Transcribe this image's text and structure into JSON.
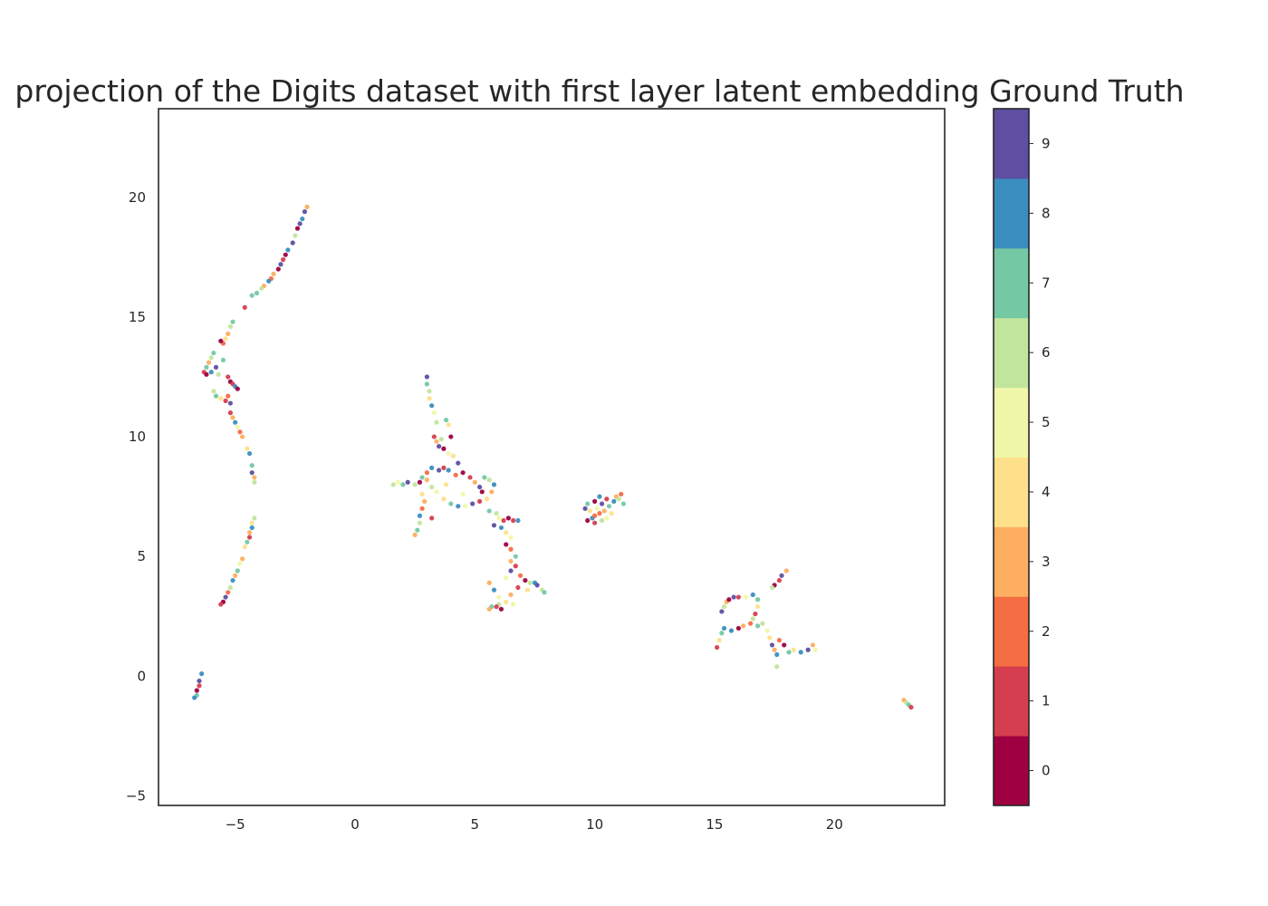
{
  "chart_data": {
    "type": "scatter",
    "title": "projection of the Digits dataset with first layer latent embedding Ground Truth",
    "xlabel": "",
    "ylabel": "",
    "xlim": [
      -8.2,
      24.6
    ],
    "ylim": [
      -5.4,
      23.7
    ],
    "xticks": [
      -5,
      0,
      5,
      10,
      15,
      20
    ],
    "xtick_labels": [
      "−5",
      "0",
      "5",
      "10",
      "15",
      "20"
    ],
    "yticks": [
      -5,
      0,
      5,
      10,
      15,
      20
    ],
    "ytick_labels": [
      "−5",
      "0",
      "5",
      "10",
      "15",
      "20"
    ],
    "grid": false,
    "colormap": "Spectral",
    "colorbar": {
      "ticks": [
        0,
        1,
        2,
        3,
        4,
        5,
        6,
        7,
        8,
        9
      ],
      "tick_labels": [
        "0",
        "1",
        "2",
        "3",
        "4",
        "5",
        "6",
        "7",
        "8",
        "9"
      ],
      "colors": [
        "#9e0142",
        "#d53e4f",
        "#f46d43",
        "#fdae61",
        "#fee08b",
        "#f1f7a8",
        "#c2e59e",
        "#75c8a4",
        "#3a8ebf",
        "#5e4fa2"
      ]
    },
    "points": [
      {
        "x": -2.0,
        "y": 19.6,
        "c": 3
      },
      {
        "x": -2.1,
        "y": 19.4,
        "c": 9
      },
      {
        "x": -2.2,
        "y": 19.1,
        "c": 8
      },
      {
        "x": -2.3,
        "y": 18.9,
        "c": 9
      },
      {
        "x": -2.4,
        "y": 18.7,
        "c": 0
      },
      {
        "x": -2.5,
        "y": 18.4,
        "c": 6
      },
      {
        "x": -2.6,
        "y": 18.1,
        "c": 9
      },
      {
        "x": -2.8,
        "y": 17.8,
        "c": 8
      },
      {
        "x": -2.9,
        "y": 17.6,
        "c": 0
      },
      {
        "x": -3.0,
        "y": 17.4,
        "c": 1
      },
      {
        "x": -3.1,
        "y": 17.2,
        "c": 9
      },
      {
        "x": -3.2,
        "y": 17.0,
        "c": 0
      },
      {
        "x": -3.4,
        "y": 16.8,
        "c": 3
      },
      {
        "x": -3.5,
        "y": 16.6,
        "c": 2
      },
      {
        "x": -3.6,
        "y": 16.5,
        "c": 8
      },
      {
        "x": -3.8,
        "y": 16.3,
        "c": 3
      },
      {
        "x": -3.9,
        "y": 16.2,
        "c": 6
      },
      {
        "x": -4.1,
        "y": 16.0,
        "c": 7
      },
      {
        "x": -4.3,
        "y": 15.9,
        "c": 7
      },
      {
        "x": -4.6,
        "y": 15.4,
        "c": 1
      },
      {
        "x": -5.1,
        "y": 14.8,
        "c": 7
      },
      {
        "x": -5.2,
        "y": 14.6,
        "c": 6
      },
      {
        "x": -5.3,
        "y": 14.3,
        "c": 3
      },
      {
        "x": -5.4,
        "y": 14.1,
        "c": 4
      },
      {
        "x": -5.5,
        "y": 13.9,
        "c": 2
      },
      {
        "x": -5.6,
        "y": 14.0,
        "c": 0
      },
      {
        "x": -5.9,
        "y": 13.5,
        "c": 7
      },
      {
        "x": -6.0,
        "y": 13.3,
        "c": 6
      },
      {
        "x": -6.1,
        "y": 13.1,
        "c": 3
      },
      {
        "x": -6.2,
        "y": 12.9,
        "c": 7
      },
      {
        "x": -6.3,
        "y": 12.7,
        "c": 1
      },
      {
        "x": -6.2,
        "y": 12.6,
        "c": 0
      },
      {
        "x": -6.0,
        "y": 12.7,
        "c": 8
      },
      {
        "x": -5.8,
        "y": 12.9,
        "c": 9
      },
      {
        "x": -5.7,
        "y": 12.6,
        "c": 6
      },
      {
        "x": -5.5,
        "y": 13.2,
        "c": 7
      },
      {
        "x": -5.3,
        "y": 12.5,
        "c": 1
      },
      {
        "x": -5.2,
        "y": 12.3,
        "c": 0
      },
      {
        "x": -5.1,
        "y": 12.2,
        "c": 1
      },
      {
        "x": -5.0,
        "y": 12.1,
        "c": 8
      },
      {
        "x": -4.9,
        "y": 12.0,
        "c": 0
      },
      {
        "x": -5.9,
        "y": 11.9,
        "c": 6
      },
      {
        "x": -5.8,
        "y": 11.7,
        "c": 7
      },
      {
        "x": -5.6,
        "y": 11.6,
        "c": 4
      },
      {
        "x": -5.4,
        "y": 11.5,
        "c": 1
      },
      {
        "x": -5.3,
        "y": 11.7,
        "c": 2
      },
      {
        "x": -5.2,
        "y": 11.4,
        "c": 9
      },
      {
        "x": -5.2,
        "y": 11.0,
        "c": 1
      },
      {
        "x": -5.1,
        "y": 10.8,
        "c": 3
      },
      {
        "x": -5.0,
        "y": 10.6,
        "c": 8
      },
      {
        "x": -4.9,
        "y": 10.4,
        "c": 5
      },
      {
        "x": -4.8,
        "y": 10.2,
        "c": 2
      },
      {
        "x": -4.7,
        "y": 10.0,
        "c": 3
      },
      {
        "x": -4.5,
        "y": 9.5,
        "c": 4
      },
      {
        "x": -4.4,
        "y": 9.3,
        "c": 8
      },
      {
        "x": -4.3,
        "y": 8.8,
        "c": 7
      },
      {
        "x": -4.3,
        "y": 8.5,
        "c": 9
      },
      {
        "x": -4.2,
        "y": 8.3,
        "c": 3
      },
      {
        "x": -4.2,
        "y": 8.1,
        "c": 6
      },
      {
        "x": -4.2,
        "y": 6.6,
        "c": 6
      },
      {
        "x": -4.3,
        "y": 6.4,
        "c": 4
      },
      {
        "x": -4.3,
        "y": 6.2,
        "c": 8
      },
      {
        "x": -4.4,
        "y": 6.0,
        "c": 3
      },
      {
        "x": -4.4,
        "y": 5.8,
        "c": 1
      },
      {
        "x": -4.5,
        "y": 5.6,
        "c": 7
      },
      {
        "x": -4.6,
        "y": 5.4,
        "c": 4
      },
      {
        "x": -4.7,
        "y": 4.9,
        "c": 3
      },
      {
        "x": -4.8,
        "y": 4.7,
        "c": 5
      },
      {
        "x": -4.9,
        "y": 4.4,
        "c": 7
      },
      {
        "x": -5.0,
        "y": 4.2,
        "c": 3
      },
      {
        "x": -5.1,
        "y": 4.0,
        "c": 8
      },
      {
        "x": -5.2,
        "y": 3.7,
        "c": 6
      },
      {
        "x": -5.3,
        "y": 3.5,
        "c": 2
      },
      {
        "x": -5.4,
        "y": 3.3,
        "c": 9
      },
      {
        "x": -5.5,
        "y": 3.1,
        "c": 0
      },
      {
        "x": -5.6,
        "y": 3.0,
        "c": 1
      },
      {
        "x": -6.4,
        "y": 0.1,
        "c": 8
      },
      {
        "x": -6.5,
        "y": -0.2,
        "c": 9
      },
      {
        "x": -6.5,
        "y": -0.4,
        "c": 1
      },
      {
        "x": -6.6,
        "y": -0.6,
        "c": 0
      },
      {
        "x": -6.6,
        "y": -0.8,
        "c": 7
      },
      {
        "x": -6.7,
        "y": -0.9,
        "c": 8
      },
      {
        "x": 3.0,
        "y": 12.5,
        "c": 9
      },
      {
        "x": 3.0,
        "y": 12.2,
        "c": 7
      },
      {
        "x": 3.1,
        "y": 11.9,
        "c": 6
      },
      {
        "x": 3.1,
        "y": 11.6,
        "c": 4
      },
      {
        "x": 3.2,
        "y": 11.3,
        "c": 8
      },
      {
        "x": 3.3,
        "y": 11.0,
        "c": 5
      },
      {
        "x": 3.4,
        "y": 10.6,
        "c": 6
      },
      {
        "x": 3.8,
        "y": 10.7,
        "c": 7
      },
      {
        "x": 3.9,
        "y": 10.5,
        "c": 4
      },
      {
        "x": 3.3,
        "y": 10.0,
        "c": 1
      },
      {
        "x": 3.4,
        "y": 9.8,
        "c": 3
      },
      {
        "x": 3.5,
        "y": 9.6,
        "c": 9
      },
      {
        "x": 3.7,
        "y": 9.5,
        "c": 0
      },
      {
        "x": 3.9,
        "y": 9.3,
        "c": 5
      },
      {
        "x": 4.1,
        "y": 9.2,
        "c": 4
      },
      {
        "x": 4.3,
        "y": 8.9,
        "c": 9
      },
      {
        "x": 4.0,
        "y": 10.0,
        "c": 0
      },
      {
        "x": 3.6,
        "y": 9.9,
        "c": 6
      },
      {
        "x": 3.2,
        "y": 8.7,
        "c": 8
      },
      {
        "x": 3.0,
        "y": 8.5,
        "c": 2
      },
      {
        "x": 2.8,
        "y": 8.3,
        "c": 7
      },
      {
        "x": 2.7,
        "y": 8.1,
        "c": 0
      },
      {
        "x": 2.5,
        "y": 8.0,
        "c": 6
      },
      {
        "x": 2.2,
        "y": 8.1,
        "c": 9
      },
      {
        "x": 2.0,
        "y": 8.0,
        "c": 7
      },
      {
        "x": 1.8,
        "y": 8.1,
        "c": 5
      },
      {
        "x": 1.6,
        "y": 8.0,
        "c": 6
      },
      {
        "x": 2.8,
        "y": 7.6,
        "c": 4
      },
      {
        "x": 2.9,
        "y": 7.3,
        "c": 3
      },
      {
        "x": 2.8,
        "y": 7.0,
        "c": 2
      },
      {
        "x": 2.7,
        "y": 6.7,
        "c": 8
      },
      {
        "x": 2.7,
        "y": 6.4,
        "c": 6
      },
      {
        "x": 2.6,
        "y": 6.1,
        "c": 7
      },
      {
        "x": 2.5,
        "y": 5.9,
        "c": 3
      },
      {
        "x": 3.2,
        "y": 6.6,
        "c": 1
      },
      {
        "x": 3.5,
        "y": 8.6,
        "c": 9
      },
      {
        "x": 3.7,
        "y": 8.7,
        "c": 1
      },
      {
        "x": 3.9,
        "y": 8.6,
        "c": 8
      },
      {
        "x": 4.2,
        "y": 8.4,
        "c": 2
      },
      {
        "x": 4.5,
        "y": 8.5,
        "c": 0
      },
      {
        "x": 4.8,
        "y": 8.3,
        "c": 1
      },
      {
        "x": 5.0,
        "y": 8.1,
        "c": 3
      },
      {
        "x": 5.2,
        "y": 7.9,
        "c": 9
      },
      {
        "x": 5.3,
        "y": 7.7,
        "c": 0
      },
      {
        "x": 5.4,
        "y": 8.3,
        "c": 7
      },
      {
        "x": 5.6,
        "y": 8.2,
        "c": 6
      },
      {
        "x": 5.8,
        "y": 8.0,
        "c": 8
      },
      {
        "x": 5.7,
        "y": 7.7,
        "c": 3
      },
      {
        "x": 5.5,
        "y": 7.4,
        "c": 4
      },
      {
        "x": 5.2,
        "y": 7.3,
        "c": 1
      },
      {
        "x": 4.9,
        "y": 7.2,
        "c": 9
      },
      {
        "x": 4.6,
        "y": 7.1,
        "c": 5
      },
      {
        "x": 4.3,
        "y": 7.1,
        "c": 8
      },
      {
        "x": 4.0,
        "y": 7.2,
        "c": 7
      },
      {
        "x": 3.7,
        "y": 7.4,
        "c": 4
      },
      {
        "x": 3.4,
        "y": 7.7,
        "c": 5
      },
      {
        "x": 3.2,
        "y": 7.9,
        "c": 6
      },
      {
        "x": 3.0,
        "y": 8.2,
        "c": 3
      },
      {
        "x": 3.8,
        "y": 8.0,
        "c": 4
      },
      {
        "x": 4.5,
        "y": 7.6,
        "c": 5
      },
      {
        "x": 5.6,
        "y": 6.9,
        "c": 7
      },
      {
        "x": 5.9,
        "y": 6.8,
        "c": 6
      },
      {
        "x": 6.0,
        "y": 6.6,
        "c": 5
      },
      {
        "x": 6.2,
        "y": 6.5,
        "c": 1
      },
      {
        "x": 6.4,
        "y": 6.6,
        "c": 0
      },
      {
        "x": 6.6,
        "y": 6.5,
        "c": 1
      },
      {
        "x": 6.8,
        "y": 6.5,
        "c": 8
      },
      {
        "x": 5.8,
        "y": 6.3,
        "c": 9
      },
      {
        "x": 6.1,
        "y": 6.2,
        "c": 8
      },
      {
        "x": 6.3,
        "y": 6.0,
        "c": 4
      },
      {
        "x": 6.5,
        "y": 5.8,
        "c": 5
      },
      {
        "x": 6.3,
        "y": 5.5,
        "c": 0
      },
      {
        "x": 6.5,
        "y": 5.3,
        "c": 2
      },
      {
        "x": 6.7,
        "y": 5.0,
        "c": 7
      },
      {
        "x": 6.5,
        "y": 4.8,
        "c": 3
      },
      {
        "x": 6.7,
        "y": 4.6,
        "c": 1
      },
      {
        "x": 6.5,
        "y": 4.4,
        "c": 9
      },
      {
        "x": 6.3,
        "y": 4.1,
        "c": 5
      },
      {
        "x": 6.9,
        "y": 4.2,
        "c": 2
      },
      {
        "x": 7.1,
        "y": 4.0,
        "c": 0
      },
      {
        "x": 7.3,
        "y": 3.9,
        "c": 6
      },
      {
        "x": 7.5,
        "y": 3.9,
        "c": 8
      },
      {
        "x": 7.6,
        "y": 3.8,
        "c": 9
      },
      {
        "x": 7.8,
        "y": 3.6,
        "c": 6
      },
      {
        "x": 7.9,
        "y": 3.5,
        "c": 7
      },
      {
        "x": 7.2,
        "y": 3.6,
        "c": 4
      },
      {
        "x": 6.8,
        "y": 3.7,
        "c": 1
      },
      {
        "x": 6.5,
        "y": 3.4,
        "c": 3
      },
      {
        "x": 6.3,
        "y": 3.1,
        "c": 4
      },
      {
        "x": 6.0,
        "y": 3.0,
        "c": 6
      },
      {
        "x": 5.7,
        "y": 2.9,
        "c": 7
      },
      {
        "x": 5.6,
        "y": 2.8,
        "c": 3
      },
      {
        "x": 5.9,
        "y": 2.9,
        "c": 1
      },
      {
        "x": 6.1,
        "y": 2.8,
        "c": 0
      },
      {
        "x": 5.6,
        "y": 3.9,
        "c": 3
      },
      {
        "x": 5.8,
        "y": 3.6,
        "c": 8
      },
      {
        "x": 6.0,
        "y": 3.3,
        "c": 5
      },
      {
        "x": 6.6,
        "y": 3.0,
        "c": 5
      },
      {
        "x": 9.6,
        "y": 7.0,
        "c": 9
      },
      {
        "x": 9.7,
        "y": 7.2,
        "c": 7
      },
      {
        "x": 9.8,
        "y": 6.9,
        "c": 4
      },
      {
        "x": 9.9,
        "y": 6.6,
        "c": 8
      },
      {
        "x": 10.0,
        "y": 6.4,
        "c": 1
      },
      {
        "x": 10.0,
        "y": 7.3,
        "c": 0
      },
      {
        "x": 10.1,
        "y": 7.0,
        "c": 5
      },
      {
        "x": 10.2,
        "y": 6.8,
        "c": 2
      },
      {
        "x": 10.2,
        "y": 7.5,
        "c": 8
      },
      {
        "x": 10.3,
        "y": 6.5,
        "c": 6
      },
      {
        "x": 10.3,
        "y": 7.2,
        "c": 9
      },
      {
        "x": 10.4,
        "y": 6.9,
        "c": 3
      },
      {
        "x": 10.5,
        "y": 6.6,
        "c": 5
      },
      {
        "x": 10.5,
        "y": 7.4,
        "c": 1
      },
      {
        "x": 10.6,
        "y": 7.1,
        "c": 7
      },
      {
        "x": 10.7,
        "y": 6.8,
        "c": 4
      },
      {
        "x": 10.8,
        "y": 7.3,
        "c": 8
      },
      {
        "x": 10.9,
        "y": 7.5,
        "c": 3
      },
      {
        "x": 11.0,
        "y": 7.4,
        "c": 6
      },
      {
        "x": 11.1,
        "y": 7.6,
        "c": 2
      },
      {
        "x": 11.2,
        "y": 7.2,
        "c": 7
      },
      {
        "x": 10.0,
        "y": 6.7,
        "c": 2
      },
      {
        "x": 9.7,
        "y": 6.5,
        "c": 0
      },
      {
        "x": 15.1,
        "y": 1.2,
        "c": 1
      },
      {
        "x": 15.2,
        "y": 1.5,
        "c": 4
      },
      {
        "x": 15.3,
        "y": 1.8,
        "c": 7
      },
      {
        "x": 15.4,
        "y": 2.0,
        "c": 8
      },
      {
        "x": 15.3,
        "y": 2.7,
        "c": 9
      },
      {
        "x": 15.4,
        "y": 2.9,
        "c": 6
      },
      {
        "x": 15.5,
        "y": 3.1,
        "c": 3
      },
      {
        "x": 15.6,
        "y": 3.2,
        "c": 0
      },
      {
        "x": 15.8,
        "y": 3.3,
        "c": 9
      },
      {
        "x": 16.0,
        "y": 3.3,
        "c": 1
      },
      {
        "x": 16.3,
        "y": 3.3,
        "c": 5
      },
      {
        "x": 16.6,
        "y": 3.4,
        "c": 8
      },
      {
        "x": 16.8,
        "y": 3.2,
        "c": 7
      },
      {
        "x": 16.8,
        "y": 2.9,
        "c": 4
      },
      {
        "x": 16.7,
        "y": 2.6,
        "c": 1
      },
      {
        "x": 16.6,
        "y": 2.4,
        "c": 6
      },
      {
        "x": 16.5,
        "y": 2.2,
        "c": 2
      },
      {
        "x": 16.2,
        "y": 2.1,
        "c": 3
      },
      {
        "x": 16.0,
        "y": 2.0,
        "c": 0
      },
      {
        "x": 15.7,
        "y": 1.9,
        "c": 8
      },
      {
        "x": 16.8,
        "y": 2.1,
        "c": 7
      },
      {
        "x": 17.0,
        "y": 2.2,
        "c": 6
      },
      {
        "x": 17.2,
        "y": 1.9,
        "c": 5
      },
      {
        "x": 17.3,
        "y": 1.6,
        "c": 4
      },
      {
        "x": 17.4,
        "y": 1.3,
        "c": 9
      },
      {
        "x": 17.5,
        "y": 1.1,
        "c": 3
      },
      {
        "x": 17.6,
        "y": 0.9,
        "c": 8
      },
      {
        "x": 17.6,
        "y": 0.4,
        "c": 6
      },
      {
        "x": 17.7,
        "y": 1.5,
        "c": 2
      },
      {
        "x": 17.9,
        "y": 1.3,
        "c": 0
      },
      {
        "x": 18.1,
        "y": 1.0,
        "c": 7
      },
      {
        "x": 18.3,
        "y": 1.1,
        "c": 4
      },
      {
        "x": 18.6,
        "y": 1.0,
        "c": 8
      },
      {
        "x": 18.9,
        "y": 1.1,
        "c": 9
      },
      {
        "x": 19.1,
        "y": 1.3,
        "c": 3
      },
      {
        "x": 19.2,
        "y": 1.1,
        "c": 5
      },
      {
        "x": 17.5,
        "y": 3.8,
        "c": 0
      },
      {
        "x": 17.7,
        "y": 4.0,
        "c": 1
      },
      {
        "x": 17.8,
        "y": 4.2,
        "c": 9
      },
      {
        "x": 18.0,
        "y": 4.4,
        "c": 3
      },
      {
        "x": 17.4,
        "y": 3.7,
        "c": 6
      },
      {
        "x": 22.9,
        "y": -1.0,
        "c": 3
      },
      {
        "x": 23.0,
        "y": -1.1,
        "c": 6
      },
      {
        "x": 23.1,
        "y": -1.2,
        "c": 7
      },
      {
        "x": 23.2,
        "y": -1.3,
        "c": 1
      }
    ]
  }
}
